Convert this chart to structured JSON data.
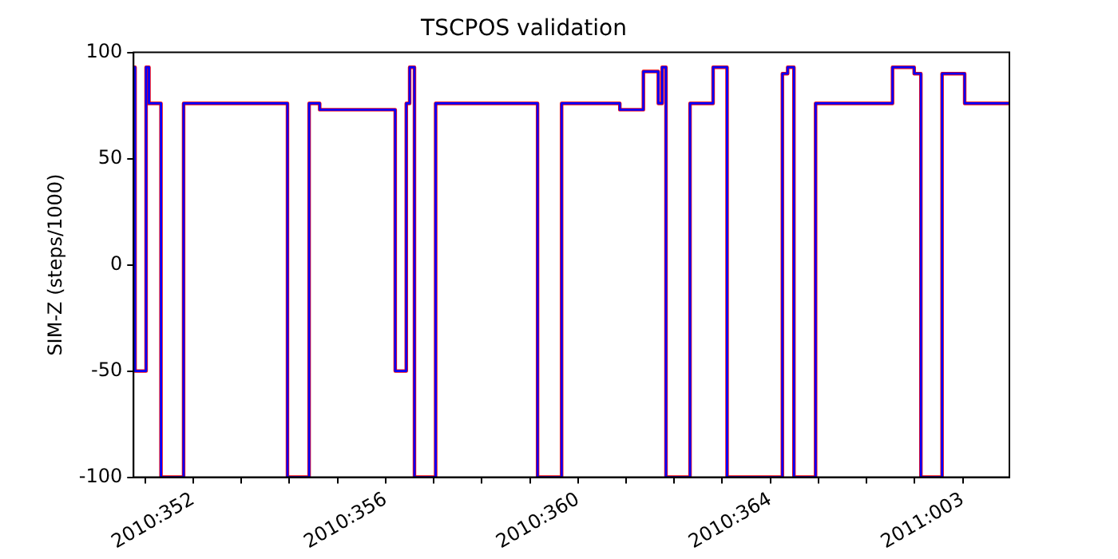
{
  "chart_data": {
    "type": "step",
    "title": "TSCPOS validation",
    "ylabel": "SIM-Z (steps/1000)",
    "xlim": [
      "2010-12-16T18:14",
      "2011-01-03T23:17"
    ],
    "ylim": [
      -100,
      100
    ],
    "yticks": [
      -100,
      -50,
      0,
      50,
      100
    ],
    "xticks": [
      {
        "value": "2010-12-17",
        "label": null
      },
      {
        "value": "2010-12-18",
        "label": "2010:352"
      },
      {
        "value": "2010-12-19",
        "label": null
      },
      {
        "value": "2010-12-20",
        "label": null
      },
      {
        "value": "2010-12-21",
        "label": null
      },
      {
        "value": "2010-12-22",
        "label": "2010:356"
      },
      {
        "value": "2010-12-23",
        "label": null
      },
      {
        "value": "2010-12-24",
        "label": null
      },
      {
        "value": "2010-12-25",
        "label": null
      },
      {
        "value": "2010-12-26",
        "label": "2010:360"
      },
      {
        "value": "2010-12-27",
        "label": null
      },
      {
        "value": "2010-12-28",
        "label": null
      },
      {
        "value": "2010-12-29",
        "label": null
      },
      {
        "value": "2010-12-30",
        "label": "2010:364"
      },
      {
        "value": "2010-12-31",
        "label": null
      },
      {
        "value": "2011-01-01",
        "label": null
      },
      {
        "value": "2011-01-02",
        "label": null
      },
      {
        "value": "2011-01-03",
        "label": "2011:003"
      }
    ],
    "grid": false,
    "x": [
      "2010-12-16T18:14",
      "2010-12-16T18:58",
      "2010-12-17T00:29",
      "2010-12-17T01:55",
      "2010-12-17T07:55",
      "2010-12-17T19:12",
      "2010-12-19T23:02",
      "2010-12-20T09:50",
      "2010-12-20T15:07",
      "2010-12-22T04:48",
      "2010-12-22T10:19",
      "2010-12-22T12:00",
      "2010-12-22T14:24",
      "2010-12-23T00:58",
      "2010-12-25T03:50",
      "2010-12-25T15:50",
      "2010-12-26T20:53",
      "2010-12-27T08:38",
      "2010-12-27T16:05",
      "2010-12-27T18:00",
      "2010-12-27T19:55",
      "2010-12-28T07:55",
      "2010-12-28T19:26",
      "2010-12-29T02:24",
      "2010-12-30T06:00",
      "2010-12-30T08:38",
      "2010-12-30T11:46",
      "2010-12-30T22:34",
      "2011-01-01T12:58",
      "2011-01-01T23:46",
      "2011-01-02T03:07",
      "2011-01-02T13:41",
      "2011-01-03T00:58",
      "2011-01-03T23:17"
    ],
    "series": [
      {
        "color": "#ff0000",
        "values": [
          93,
          -50,
          93,
          76,
          -100,
          76,
          -100,
          76,
          73,
          -50,
          76,
          93,
          -100,
          76,
          -100,
          76,
          73,
          91,
          76,
          93,
          -100,
          76,
          93,
          -100,
          90,
          93,
          -100,
          76,
          93,
          90,
          -100,
          90,
          76,
          76
        ]
      },
      {
        "color": "#0000ff",
        "values": [
          93,
          -50,
          93,
          76,
          -100,
          76,
          -100,
          76,
          73,
          -50,
          76,
          93,
          -100,
          76,
          -100,
          76,
          73,
          91,
          76,
          93,
          -100,
          76,
          93,
          -100,
          90,
          93,
          -100,
          76,
          93,
          90,
          -100,
          90,
          76,
          76
        ]
      }
    ]
  }
}
